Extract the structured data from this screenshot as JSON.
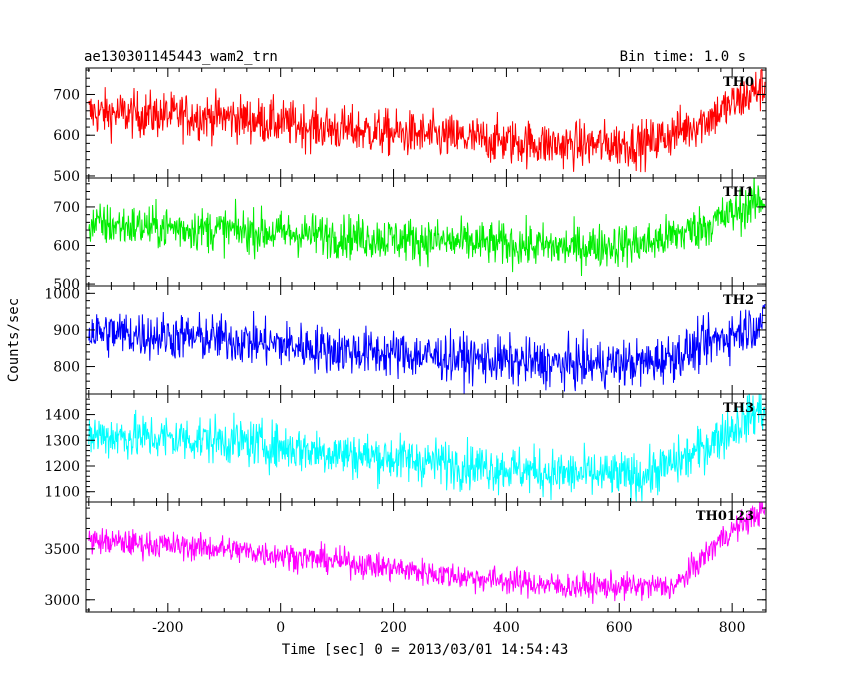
{
  "title_left": "ae130301145443_wam2_trn",
  "title_right": "Bin time: 1.0 s",
  "ylabel": "Counts/sec",
  "xlabel": "Time [sec] 0 = 2013/03/01 14:54:43",
  "chart_data": {
    "type": "line",
    "xlim": [
      -345,
      860
    ],
    "x_ticks": [
      -200,
      0,
      200,
      400,
      600,
      800
    ],
    "grid": false,
    "panels": [
      {
        "name": "TH0",
        "color": "#ff0000",
        "ylim": [
          495,
          765
        ],
        "y_ticks": [
          500,
          600,
          700
        ],
        "trend": [
          [
            -340,
            655
          ],
          [
            -100,
            645
          ],
          [
            100,
            615
          ],
          [
            300,
            595
          ],
          [
            500,
            575
          ],
          [
            650,
            580
          ],
          [
            750,
            635
          ],
          [
            850,
            715
          ]
        ],
        "noise": 28
      },
      {
        "name": "TH1",
        "color": "#00ee00",
        "ylim": [
          495,
          775
        ],
        "y_ticks": [
          500,
          600,
          700
        ],
        "trend": [
          [
            -340,
            655
          ],
          [
            -100,
            640
          ],
          [
            100,
            625
          ],
          [
            300,
            610
          ],
          [
            500,
            595
          ],
          [
            650,
            605
          ],
          [
            750,
            650
          ],
          [
            850,
            715
          ]
        ],
        "noise": 28
      },
      {
        "name": "TH2",
        "color": "#0000ff",
        "ylim": [
          725,
          1020
        ],
        "y_ticks": [
          800,
          900,
          1000
        ],
        "trend": [
          [
            -340,
            895
          ],
          [
            -100,
            875
          ],
          [
            100,
            845
          ],
          [
            300,
            825
          ],
          [
            500,
            805
          ],
          [
            650,
            810
          ],
          [
            720,
            840
          ],
          [
            850,
            920
          ]
        ],
        "noise": 32
      },
      {
        "name": "TH3",
        "color": "#00ffff",
        "ylim": [
          1060,
          1480
        ],
        "y_ticks": [
          1100,
          1200,
          1300,
          1400
        ],
        "trend": [
          [
            -340,
            1320
          ],
          [
            -100,
            1300
          ],
          [
            100,
            1250
          ],
          [
            300,
            1210
          ],
          [
            500,
            1170
          ],
          [
            640,
            1160
          ],
          [
            720,
            1230
          ],
          [
            850,
            1420
          ]
        ],
        "noise": 45
      },
      {
        "name": "TH0123",
        "color": "#ff00ff",
        "ylim": [
          2880,
          3960
        ],
        "y_ticks": [
          3000,
          3500
        ],
        "trend": [
          [
            -340,
            3580
          ],
          [
            -100,
            3500
          ],
          [
            100,
            3380
          ],
          [
            300,
            3240
          ],
          [
            500,
            3130
          ],
          [
            700,
            3130
          ],
          [
            780,
            3600
          ],
          [
            850,
            3870
          ]
        ],
        "noise": 65
      }
    ]
  }
}
